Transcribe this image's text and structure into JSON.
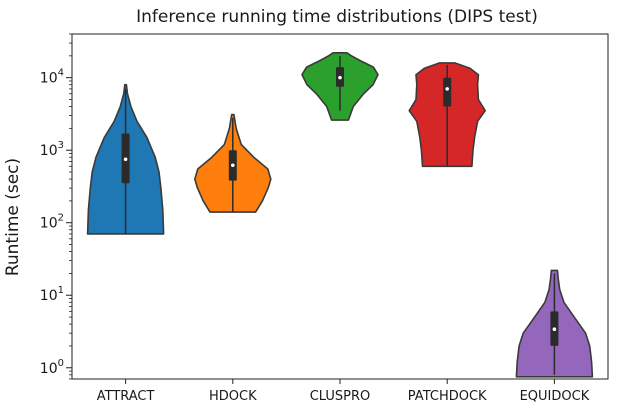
{
  "chart_data": {
    "type": "violin",
    "title": "Inference running time distributions (DIPS test)",
    "ylabel": "Runtime (sec)",
    "xlabel": "",
    "yscale": "log",
    "ylim": [
      0.7,
      40000
    ],
    "y_ticks": [
      {
        "value": 1,
        "base": "10",
        "exp": "0"
      },
      {
        "value": 10,
        "base": "10",
        "exp": "1"
      },
      {
        "value": 100,
        "base": "10",
        "exp": "2"
      },
      {
        "value": 1000,
        "base": "10",
        "exp": "3"
      },
      {
        "value": 10000,
        "base": "10",
        "exp": "4"
      }
    ],
    "grid": false,
    "categories": [
      "ATTRACT",
      "HDOCK",
      "CLUSPRO",
      "PATCHDOCK",
      "EQUIDOCK"
    ],
    "series": [
      {
        "color": "#1f77b4",
        "min": 70,
        "max": 8000,
        "q1": 350,
        "median": 750,
        "q3": 1700,
        "whisker_low": 70,
        "whisker_high": 7000,
        "density": [
          [
            70,
            1.0
          ],
          [
            150,
            0.98
          ],
          [
            300,
            0.93
          ],
          [
            500,
            0.88
          ],
          [
            800,
            0.78
          ],
          [
            1500,
            0.56
          ],
          [
            2500,
            0.3
          ],
          [
            4000,
            0.14
          ],
          [
            6000,
            0.05
          ],
          [
            8000,
            0.02
          ]
        ]
      },
      {
        "color": "#ff7f0e",
        "min": 140,
        "max": 3100,
        "q1": 380,
        "median": 620,
        "q3": 1000,
        "whisker_low": 140,
        "whisker_high": 2800,
        "density": [
          [
            140,
            0.6
          ],
          [
            200,
            0.78
          ],
          [
            300,
            0.93
          ],
          [
            400,
            1.0
          ],
          [
            550,
            0.92
          ],
          [
            800,
            0.55
          ],
          [
            1200,
            0.22
          ],
          [
            2000,
            0.09
          ],
          [
            3100,
            0.03
          ]
        ]
      },
      {
        "color": "#2ca02c",
        "min": 2600,
        "max": 22000,
        "q1": 7500,
        "median": 10000,
        "q3": 14000,
        "whisker_low": 3500,
        "whisker_high": 20000,
        "density": [
          [
            2600,
            0.22
          ],
          [
            4000,
            0.35
          ],
          [
            6000,
            0.62
          ],
          [
            8000,
            0.87
          ],
          [
            11000,
            1.0
          ],
          [
            14000,
            0.88
          ],
          [
            17000,
            0.55
          ],
          [
            20000,
            0.3
          ],
          [
            22000,
            0.18
          ]
        ]
      },
      {
        "color": "#d62728",
        "min": 600,
        "max": 16000,
        "q1": 4000,
        "median": 7000,
        "q3": 10000,
        "whisker_low": 600,
        "whisker_high": 15000,
        "density": [
          [
            600,
            0.65
          ],
          [
            1000,
            0.68
          ],
          [
            1500,
            0.72
          ],
          [
            2500,
            0.8
          ],
          [
            3500,
            1.0
          ],
          [
            5000,
            0.82
          ],
          [
            8000,
            0.8
          ],
          [
            11000,
            0.82
          ],
          [
            13500,
            0.6
          ],
          [
            16000,
            0.2
          ]
        ]
      },
      {
        "color": "#9467bd",
        "min": 0.75,
        "max": 22,
        "q1": 2,
        "median": 3.4,
        "q3": 6,
        "whisker_low": 0.8,
        "whisker_high": 20,
        "density": [
          [
            0.75,
            1.0
          ],
          [
            1.2,
            0.98
          ],
          [
            2,
            0.93
          ],
          [
            3,
            0.82
          ],
          [
            5,
            0.52
          ],
          [
            8,
            0.25
          ],
          [
            12,
            0.14
          ],
          [
            17,
            0.1
          ],
          [
            22,
            0.08
          ]
        ]
      }
    ]
  }
}
